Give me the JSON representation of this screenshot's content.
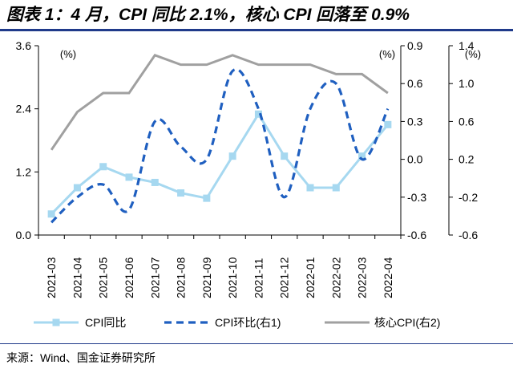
{
  "header": {
    "title": "图表 1：4 月，CPI 同比 2.1%，核心 CPI 回落至 0.9%"
  },
  "footer": {
    "source": "来源：Wind、国金证券研究所"
  },
  "chart_data": {
    "type": "line",
    "categories": [
      "2021-03",
      "2021-04",
      "2021-05",
      "2021-06",
      "2021-07",
      "2021-08",
      "2021-09",
      "2021-10",
      "2021-11",
      "2021-12",
      "2022-01",
      "2022-02",
      "2022-03",
      "2022-04"
    ],
    "series": [
      {
        "name": "CPI同比",
        "axis": "left",
        "style": "solid-square-markers",
        "color": "#a6d8f0",
        "values": [
          0.4,
          0.9,
          1.3,
          1.1,
          1.0,
          0.8,
          0.7,
          1.5,
          2.3,
          1.5,
          0.9,
          0.9,
          1.5,
          2.1
        ]
      },
      {
        "name": "CPI环比(右1)",
        "axis": "right1",
        "style": "dashed",
        "color": "#1f5fc0",
        "values": [
          -0.5,
          -0.3,
          -0.2,
          -0.4,
          0.3,
          0.1,
          0.0,
          0.7,
          0.4,
          -0.3,
          0.4,
          0.6,
          0.0,
          0.4
        ]
      },
      {
        "name": "核心CPI(右2)",
        "axis": "right2",
        "style": "solid",
        "color": "#a0a0a0",
        "values": [
          0.3,
          0.7,
          0.9,
          0.9,
          1.3,
          1.2,
          1.2,
          1.3,
          1.2,
          1.2,
          1.2,
          1.1,
          1.1,
          0.9
        ]
      }
    ],
    "axes": {
      "left": {
        "unit": "(%)",
        "ylim": [
          0,
          3.6
        ],
        "ticks": [
          0.0,
          1.2,
          2.4,
          3.6
        ],
        "tick_labels": [
          "0.0",
          "1.2",
          "2.4",
          "3.6"
        ]
      },
      "right1": {
        "unit": "(%)",
        "ylim": [
          -0.6,
          0.9
        ],
        "ticks": [
          -0.6,
          -0.3,
          0.0,
          0.3,
          0.6,
          0.9
        ],
        "tick_labels": [
          "-0.6",
          "-0.3",
          "0.0",
          "0.3",
          "0.6",
          "0.9"
        ]
      },
      "right2": {
        "unit": "(%)",
        "ylim": [
          -0.6,
          1.4
        ],
        "ticks": [
          -0.6,
          -0.2,
          0.2,
          0.6,
          1.0,
          1.4
        ],
        "tick_labels": [
          "-0.6",
          "-0.2",
          "0.2",
          "0.6",
          "1.0",
          "1.4"
        ]
      }
    },
    "grid": false,
    "legend_position": "bottom"
  }
}
